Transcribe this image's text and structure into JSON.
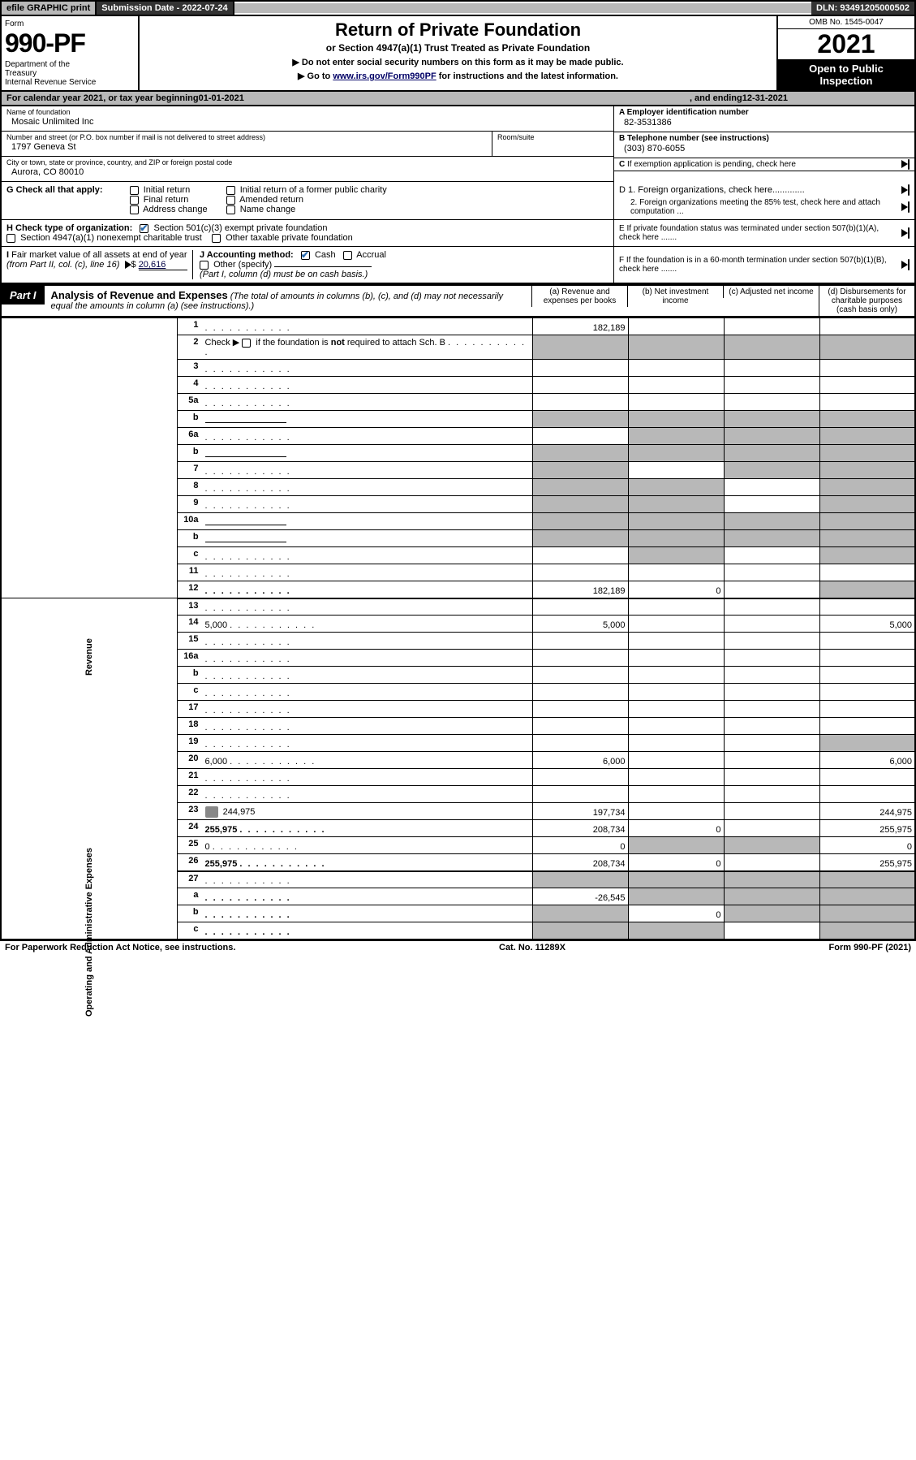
{
  "topbar": {
    "efile": "efile GRAPHIC print",
    "subdate_label": "Submission Date - ",
    "subdate": "2022-07-24",
    "dln_label": "DLN: ",
    "dln": "93491205000502"
  },
  "header": {
    "form_label": "Form",
    "form_number": "990-PF",
    "dept": "Department of the Treasury\nInternal Revenue Service",
    "title": "Return of Private Foundation",
    "subtitle": "or Section 4947(a)(1) Trust Treated as Private Foundation",
    "note1": "▶ Do not enter social security numbers on this form as it may be made public.",
    "note2_prefix": "▶ Go to ",
    "note2_link": "www.irs.gov/Form990PF",
    "note2_suffix": " for instructions and the latest information.",
    "omb": "OMB No. 1545-0047",
    "year": "2021",
    "open_pub": "Open to Public Inspection"
  },
  "calyear": {
    "text1": "For calendar year 2021, or tax year beginning ",
    "begin": "01-01-2021",
    "text2": ", and ending ",
    "end": "12-31-2021"
  },
  "info": {
    "name_lbl": "Name of foundation",
    "name": "Mosaic Unlimited Inc",
    "addr_lbl": "Number and street (or P.O. box number if mail is not delivered to street address)",
    "addr": "1797 Geneva St",
    "room_lbl": "Room/suite",
    "room": "",
    "city_lbl": "City or town, state or province, country, and ZIP or foreign postal code",
    "city": "Aurora, CO  80010",
    "a_lbl": "A Employer identification number",
    "a_val": "82-3531386",
    "b_lbl": "B Telephone number (see instructions)",
    "b_val": "(303) 870-6055",
    "c_lbl": "C If exemption application is pending, check here",
    "d1_lbl": "D 1. Foreign organizations, check here.............",
    "d2_lbl": "2. Foreign organizations meeting the 85% test, check here and attach computation ...",
    "e_lbl": "E  If private foundation status was terminated under section 507(b)(1)(A), check here .......",
    "f_lbl": "F  If the foundation is in a 60-month termination under section 507(b)(1)(B), check here ......."
  },
  "G": {
    "label": "G Check all that apply:",
    "opts": [
      "Initial return",
      "Final return",
      "Address change",
      "Initial return of a former public charity",
      "Amended return",
      "Name change"
    ]
  },
  "H": {
    "label": "H Check type of organization:",
    "opt1": "Section 501(c)(3) exempt private foundation",
    "opt2": "Section 4947(a)(1) nonexempt charitable trust",
    "opt3": "Other taxable private foundation"
  },
  "I": {
    "label": "I Fair market value of all assets at end of year (from Part II, col. (c), line 16) ",
    "prefix": "▶$ ",
    "value": "20,616"
  },
  "J": {
    "label": "J Accounting method:",
    "cash": "Cash",
    "accrual": "Accrual",
    "other": "Other (specify)",
    "note": "(Part I, column (d) must be on cash basis.)"
  },
  "part1": {
    "label": "Part I",
    "title": "Analysis of Revenue and Expenses",
    "note": "(The total of amounts in columns (b), (c), and (d) may not necessarily equal the amounts in column (a) (see instructions).)",
    "col_a": "(a)   Revenue and expenses per books",
    "col_b": "(b)   Net investment income",
    "col_c": "(c)   Adjusted net income",
    "col_d": "(d)   Disbursements for charitable purposes (cash basis only)"
  },
  "side": {
    "revenue": "Revenue",
    "expenses": "Operating and Administrative Expenses"
  },
  "rows": [
    {
      "n": "1",
      "d": "",
      "a": "182,189",
      "b": "",
      "c": ""
    },
    {
      "n": "2",
      "d": "",
      "a": "",
      "b": "",
      "c": "",
      "shade_bcd": true,
      "shade_a": true
    },
    {
      "n": "3",
      "d": "",
      "a": "",
      "b": "",
      "c": ""
    },
    {
      "n": "4",
      "d": "",
      "a": "",
      "b": "",
      "c": ""
    },
    {
      "n": "5a",
      "d": "",
      "a": "",
      "b": "",
      "c": ""
    },
    {
      "n": "b",
      "d": "",
      "a": "",
      "b": "",
      "c": "",
      "shade_all": true,
      "inline": true
    },
    {
      "n": "6a",
      "d": "",
      "a": "",
      "b": "",
      "c": "",
      "shade_bcd": true
    },
    {
      "n": "b",
      "d": "",
      "a": "",
      "b": "",
      "c": "",
      "shade_all": true,
      "inline": true
    },
    {
      "n": "7",
      "d": "",
      "a": "",
      "b": "",
      "c": "",
      "shade_a": true,
      "shade_cd": true
    },
    {
      "n": "8",
      "d": "",
      "a": "",
      "b": "",
      "c": "",
      "shade_ab": true,
      "shade_d": true
    },
    {
      "n": "9",
      "d": "",
      "a": "",
      "b": "",
      "c": "",
      "shade_ab": true,
      "shade_d": true
    },
    {
      "n": "10a",
      "d": "",
      "a": "",
      "b": "",
      "c": "",
      "shade_all": true,
      "inline": true
    },
    {
      "n": "b",
      "d": "",
      "a": "",
      "b": "",
      "c": "",
      "shade_all": true,
      "inline": true
    },
    {
      "n": "c",
      "d": "",
      "a": "",
      "b": "",
      "c": "",
      "shade_b": true,
      "shade_d": true
    },
    {
      "n": "11",
      "d": "",
      "a": "",
      "b": "",
      "c": ""
    },
    {
      "n": "12",
      "d": "",
      "a": "182,189",
      "b": "0",
      "c": "",
      "bold": true,
      "shade_d": true,
      "bordb": true
    },
    {
      "n": "13",
      "d": "",
      "a": "",
      "b": "",
      "c": ""
    },
    {
      "n": "14",
      "d": "5,000",
      "a": "5,000",
      "b": "",
      "c": ""
    },
    {
      "n": "15",
      "d": "",
      "a": "",
      "b": "",
      "c": ""
    },
    {
      "n": "16a",
      "d": "",
      "a": "",
      "b": "",
      "c": ""
    },
    {
      "n": "b",
      "d": "",
      "a": "",
      "b": "",
      "c": ""
    },
    {
      "n": "c",
      "d": "",
      "a": "",
      "b": "",
      "c": ""
    },
    {
      "n": "17",
      "d": "",
      "a": "",
      "b": "",
      "c": ""
    },
    {
      "n": "18",
      "d": "",
      "a": "",
      "b": "",
      "c": ""
    },
    {
      "n": "19",
      "d": "",
      "a": "",
      "b": "",
      "c": "",
      "shade_d": true
    },
    {
      "n": "20",
      "d": "6,000",
      "a": "6,000",
      "b": "",
      "c": ""
    },
    {
      "n": "21",
      "d": "",
      "a": "",
      "b": "",
      "c": ""
    },
    {
      "n": "22",
      "d": "",
      "a": "",
      "b": "",
      "c": ""
    },
    {
      "n": "23",
      "d": "244,975",
      "a": "197,734",
      "b": "",
      "c": "",
      "icon": true
    },
    {
      "n": "24",
      "d": "255,975",
      "a": "208,734",
      "b": "0",
      "c": "",
      "bold": true
    },
    {
      "n": "25",
      "d": "0",
      "a": "0",
      "b": "",
      "c": "",
      "shade_bc": true
    },
    {
      "n": "26",
      "d": "255,975",
      "a": "208,734",
      "b": "0",
      "c": "",
      "bold": true,
      "bordb": true
    },
    {
      "n": "27",
      "d": "",
      "a": "",
      "b": "",
      "c": "",
      "shade_all": true
    },
    {
      "n": "a",
      "d": "",
      "a": "-26,545",
      "b": "",
      "c": "",
      "bold": true,
      "shade_bcd": true
    },
    {
      "n": "b",
      "d": "",
      "a": "",
      "b": "0",
      "c": "",
      "bold": true,
      "shade_a": true,
      "shade_cd": true
    },
    {
      "n": "c",
      "d": "",
      "a": "",
      "b": "",
      "c": "",
      "bold": true,
      "shade_ab": true,
      "shade_d": true
    }
  ],
  "footer": {
    "left": "For Paperwork Reduction Act Notice, see instructions.",
    "mid": "Cat. No. 11289X",
    "right": "Form 990-PF (2021)"
  },
  "colors": {
    "shade": "#b8b8b8",
    "link": "#004488"
  }
}
